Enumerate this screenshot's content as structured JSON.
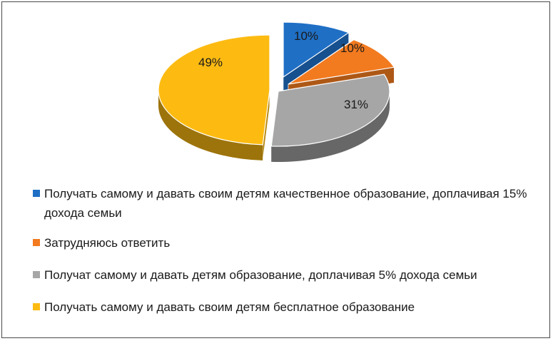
{
  "chart_data": {
    "type": "pie",
    "style": "3d-exploded",
    "title": "",
    "slices": [
      {
        "label": "Получать самому и давать своим детям качественное образование, доплачивая 15% дохода семьи",
        "value": 10,
        "display": "10%",
        "color": "#1f6fc5"
      },
      {
        "label": "Затрудняюсь ответить",
        "value": 10,
        "display": "10%",
        "color": "#f27a1f"
      },
      {
        "label": "Получат самому и давать детям образование, доплачивая 5% дохода семьи",
        "value": 31,
        "display": "31%",
        "color": "#a6a6a6"
      },
      {
        "label": "Получать самому и давать своим детям бесплатное образование",
        "value": 49,
        "display": "49%",
        "color": "#fdbb12"
      }
    ],
    "legend_position": "bottom"
  }
}
